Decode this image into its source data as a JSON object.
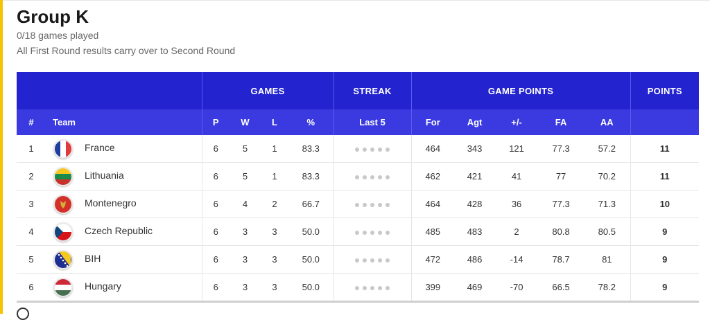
{
  "group": {
    "title": "Group K",
    "games_played": "0/18 games played",
    "note": "All First Round results carry over to Second Round"
  },
  "table": {
    "group_headers": {
      "games": "GAMES",
      "streak": "STREAK",
      "game_points": "GAME POINTS",
      "points": "POINTS"
    },
    "columns": [
      "#",
      "Team",
      "P",
      "W",
      "L",
      "%",
      "Last 5",
      "For",
      "Agt",
      "+/-",
      "FA",
      "AA"
    ],
    "rows": [
      {
        "rank": "1",
        "team": "France",
        "flag": "france-flag-icon",
        "p": "6",
        "w": "5",
        "l": "1",
        "pct": "83.3",
        "for": "464",
        "agt": "343",
        "diff": "121",
        "fa": "77.3",
        "aa": "57.2",
        "points": "11"
      },
      {
        "rank": "2",
        "team": "Lithuania",
        "flag": "lithuania-flag-icon",
        "p": "6",
        "w": "5",
        "l": "1",
        "pct": "83.3",
        "for": "462",
        "agt": "421",
        "diff": "41",
        "fa": "77",
        "aa": "70.2",
        "points": "11"
      },
      {
        "rank": "3",
        "team": "Montenegro",
        "flag": "montenegro-flag-icon",
        "p": "6",
        "w": "4",
        "l": "2",
        "pct": "66.7",
        "for": "464",
        "agt": "428",
        "diff": "36",
        "fa": "77.3",
        "aa": "71.3",
        "points": "10"
      },
      {
        "rank": "4",
        "team": "Czech Republic",
        "flag": "czech-flag-icon",
        "p": "6",
        "w": "3",
        "l": "3",
        "pct": "50.0",
        "for": "485",
        "agt": "483",
        "diff": "2",
        "fa": "80.8",
        "aa": "80.5",
        "points": "9"
      },
      {
        "rank": "5",
        "team": "BIH",
        "flag": "bih-flag-icon",
        "p": "6",
        "w": "3",
        "l": "3",
        "pct": "50.0",
        "for": "472",
        "agt": "486",
        "diff": "-14",
        "fa": "78.7",
        "aa": "81",
        "points": "9"
      },
      {
        "rank": "6",
        "team": "Hungary",
        "flag": "hungary-flag-icon",
        "p": "6",
        "w": "3",
        "l": "3",
        "pct": "50.0",
        "for": "399",
        "agt": "469",
        "diff": "-70",
        "fa": "66.5",
        "aa": "78.2",
        "points": "9"
      }
    ]
  },
  "colors": {
    "header_bg": "#2323cf",
    "subheader_bg": "#3a3ae0",
    "accent": "#f4c400",
    "streak_dot": "#c8c8c8"
  },
  "icons": {
    "info": "info-icon"
  }
}
